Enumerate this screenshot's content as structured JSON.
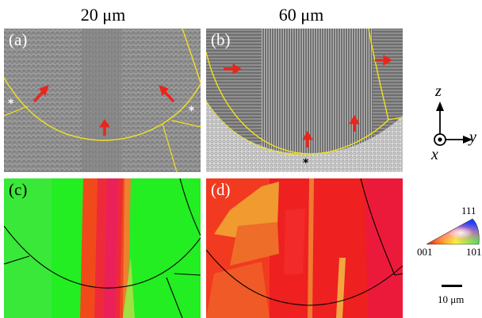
{
  "columns": [
    {
      "label": "20 μm"
    },
    {
      "label": "60 μm"
    }
  ],
  "panels": [
    {
      "label": "(a)"
    },
    {
      "label": "(b)"
    },
    {
      "label": "(c)"
    },
    {
      "label": "(d)"
    }
  ],
  "marker": "*",
  "coordinate_axes": {
    "z": "z",
    "x": "x",
    "y": "y"
  },
  "ipf_key": {
    "top": "111",
    "left": "001",
    "right": "101"
  },
  "scale_bar": {
    "label": "10 μm"
  },
  "colors": {
    "boundary": "#f2e21b",
    "arrow": "#e8261c",
    "green_grain": "#22ee22",
    "red_grain": "#ee2020"
  }
}
